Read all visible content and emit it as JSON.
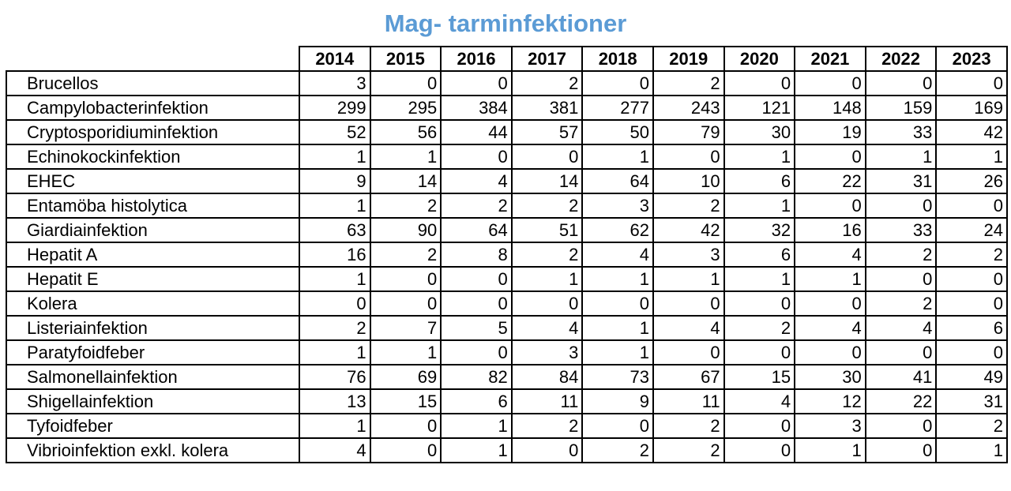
{
  "chart_data": {
    "type": "table",
    "title": "Mag- tarminfektioner",
    "columns": [
      "2014",
      "2015",
      "2016",
      "2017",
      "2018",
      "2019",
      "2020",
      "2021",
      "2022",
      "2023"
    ],
    "rows": [
      {
        "label": "Brucellos",
        "values": [
          3,
          0,
          0,
          2,
          0,
          2,
          0,
          0,
          0,
          0
        ]
      },
      {
        "label": "Campylobacterinfektion",
        "values": [
          299,
          295,
          384,
          381,
          277,
          243,
          121,
          148,
          159,
          169
        ]
      },
      {
        "label": "Cryptosporidiuminfektion",
        "values": [
          52,
          56,
          44,
          57,
          50,
          79,
          30,
          19,
          33,
          42
        ]
      },
      {
        "label": "Echinokockinfektion",
        "values": [
          1,
          1,
          0,
          0,
          1,
          0,
          1,
          0,
          1,
          1
        ]
      },
      {
        "label": "EHEC",
        "values": [
          9,
          14,
          4,
          14,
          64,
          10,
          6,
          22,
          31,
          26
        ]
      },
      {
        "label": "Entamöba histolytica",
        "values": [
          1,
          2,
          2,
          2,
          3,
          2,
          1,
          0,
          0,
          0
        ]
      },
      {
        "label": "Giardiainfektion",
        "values": [
          63,
          90,
          64,
          51,
          62,
          42,
          32,
          16,
          33,
          24
        ]
      },
      {
        "label": "Hepatit A",
        "values": [
          16,
          2,
          8,
          2,
          4,
          3,
          6,
          4,
          2,
          2
        ]
      },
      {
        "label": "Hepatit E",
        "values": [
          1,
          0,
          0,
          1,
          1,
          1,
          1,
          1,
          0,
          0
        ]
      },
      {
        "label": "Kolera",
        "values": [
          0,
          0,
          0,
          0,
          0,
          0,
          0,
          0,
          2,
          0
        ]
      },
      {
        "label": "Listeriainfektion",
        "values": [
          2,
          7,
          5,
          4,
          1,
          4,
          2,
          4,
          4,
          6
        ]
      },
      {
        "label": "Paratyfoidfeber",
        "values": [
          1,
          1,
          0,
          3,
          1,
          0,
          0,
          0,
          0,
          0
        ]
      },
      {
        "label": "Salmonellainfektion",
        "values": [
          76,
          69,
          82,
          84,
          73,
          67,
          15,
          30,
          41,
          49
        ]
      },
      {
        "label": "Shigellainfektion",
        "values": [
          13,
          15,
          6,
          11,
          9,
          11,
          4,
          12,
          22,
          31
        ]
      },
      {
        "label": "Tyfoidfeber",
        "values": [
          1,
          0,
          1,
          2,
          0,
          2,
          0,
          3,
          0,
          2
        ]
      },
      {
        "label": "Vibrioinfektion exkl. kolera",
        "values": [
          4,
          0,
          1,
          0,
          2,
          2,
          0,
          1,
          0,
          1
        ]
      }
    ],
    "title_color": "#5b9bd5",
    "grid": true
  }
}
